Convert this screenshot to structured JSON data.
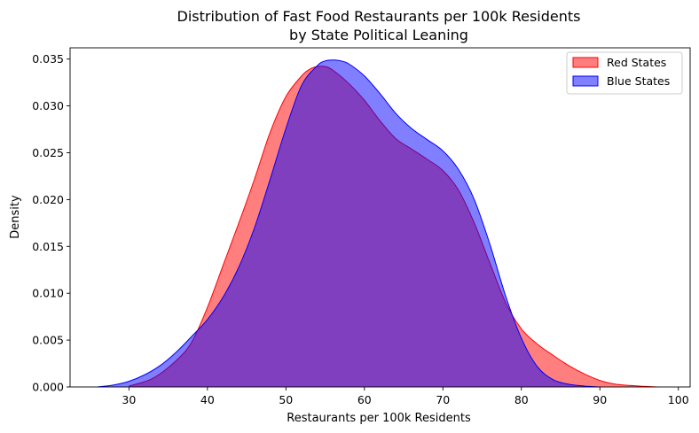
{
  "chart_data": {
    "type": "area",
    "title": "Distribution of Fast Food Restaurants per 100k Residents",
    "subtitle": "by State Political Leaning",
    "xlabel": "Restaurants per 100k Residents",
    "ylabel": "Density",
    "xlim": [
      22.5,
      101.5
    ],
    "ylim": [
      0,
      0.0362
    ],
    "x_ticks": [
      30,
      40,
      50,
      60,
      70,
      80,
      90,
      100
    ],
    "y_ticks": [
      0.0,
      0.005,
      0.01,
      0.015,
      0.02,
      0.025,
      0.03,
      0.035
    ],
    "y_tick_labels": [
      "0.000",
      "0.005",
      "0.010",
      "0.015",
      "0.020",
      "0.025",
      "0.030",
      "0.035"
    ],
    "grid": false,
    "legend_position": "top-right",
    "series": [
      {
        "name": "Red States",
        "color": "#ff0000",
        "fill_alpha": 0.5,
        "x": [
          30,
          33,
          36,
          38,
          40,
          42,
          44,
          46,
          48,
          50,
          52,
          53,
          54,
          55,
          56,
          58,
          60,
          62,
          64,
          66,
          68,
          70,
          72,
          74,
          76,
          78,
          80,
          82,
          84,
          86,
          88,
          90,
          92,
          95,
          97.5
        ],
        "y": [
          0.0001,
          0.0009,
          0.0028,
          0.0048,
          0.0085,
          0.013,
          0.0175,
          0.0222,
          0.0272,
          0.031,
          0.0332,
          0.0339,
          0.0342,
          0.0342,
          0.0338,
          0.0324,
          0.0306,
          0.0284,
          0.0265,
          0.0254,
          0.0243,
          0.0231,
          0.021,
          0.0175,
          0.0132,
          0.009,
          0.0062,
          0.0046,
          0.0034,
          0.0023,
          0.0014,
          0.0007,
          0.0003,
          0.0001,
          0.0
        ]
      },
      {
        "name": "Blue States",
        "color": "#0000ff",
        "fill_alpha": 0.5,
        "x": [
          26,
          28,
          30,
          32,
          34,
          36,
          38,
          40,
          42,
          44,
          46,
          48,
          50,
          52,
          54,
          55,
          56,
          57,
          58,
          60,
          62,
          64,
          66,
          68,
          70,
          72,
          74,
          76,
          78,
          80,
          82,
          84,
          86,
          88,
          90
        ],
        "y": [
          0.0,
          0.0002,
          0.0006,
          0.0013,
          0.0023,
          0.0037,
          0.0054,
          0.0072,
          0.0096,
          0.0128,
          0.017,
          0.0222,
          0.0276,
          0.0322,
          0.0343,
          0.0348,
          0.0349,
          0.0348,
          0.0345,
          0.0332,
          0.0313,
          0.0292,
          0.0276,
          0.0264,
          0.0252,
          0.0232,
          0.02,
          0.0152,
          0.0097,
          0.0052,
          0.0022,
          0.0008,
          0.0003,
          0.0001,
          0.0
        ]
      }
    ]
  }
}
